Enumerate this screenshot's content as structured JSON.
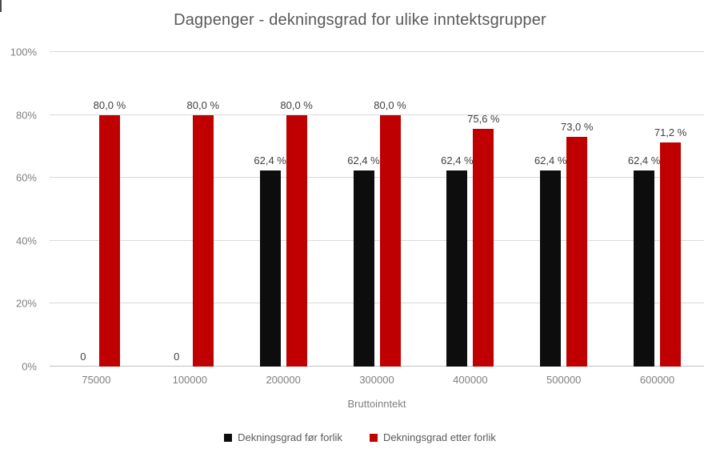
{
  "title": "Dagpenger - dekningsgrad for ulike inntektsgrupper",
  "chart_data": {
    "type": "bar",
    "categories": [
      "75000",
      "100000",
      "200000",
      "300000",
      "400000",
      "500000",
      "600000"
    ],
    "series": [
      {
        "name": "Dekningsgrad før forlik",
        "color": "#0d0d0d",
        "values": [
          0,
          0,
          62.4,
          62.4,
          62.4,
          62.4,
          62.4
        ],
        "labels": [
          "0",
          "0",
          "62,4 %",
          "62,4 %",
          "62,4 %",
          "62,4 %",
          "62,4 %"
        ]
      },
      {
        "name": "Dekningsgrad etter forlik",
        "color": "#c00000",
        "values": [
          80.0,
          80.0,
          80.0,
          80.0,
          75.6,
          73.0,
          71.2
        ],
        "labels": [
          "80,0 %",
          "80,0 %",
          "80,0 %",
          "80,0 %",
          "75,6 %",
          "73,0 %",
          "71,2 %"
        ]
      }
    ],
    "xlabel": "Bruttoinntekt",
    "ylabel": "",
    "ylim": [
      0,
      100
    ],
    "y_ticks": [
      "0%",
      "20%",
      "40%",
      "60%",
      "80%",
      "100%"
    ],
    "grid": true,
    "legend_position": "bottom"
  },
  "colors": {
    "background": "#ffffff",
    "title_text": "#595959",
    "axis_text": "#7f7f7f",
    "data_label_text": "#404040",
    "gridline": "#d9d9d9",
    "axis_line": "#bfbfbf",
    "series_before": "#0d0d0d",
    "series_after": "#c00000"
  }
}
